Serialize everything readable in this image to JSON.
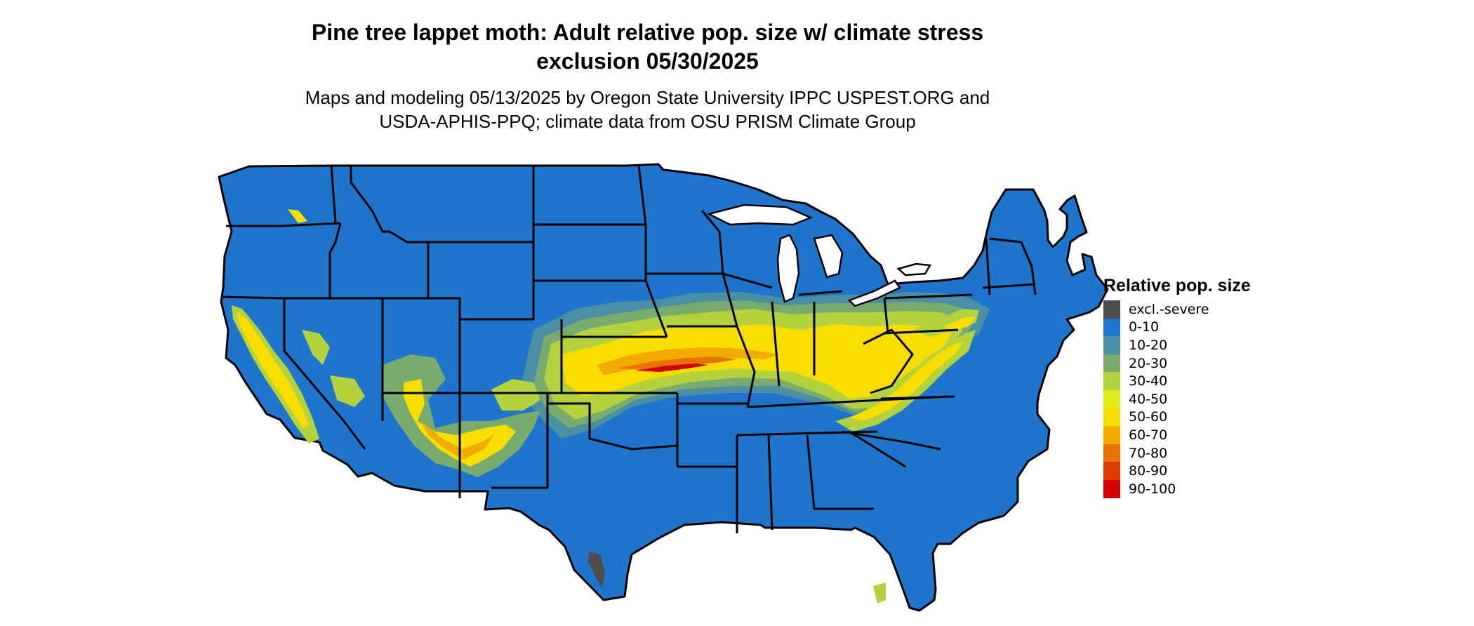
{
  "title": {
    "line1": "Pine tree lappet moth: Adult relative pop. size w/ climate stress",
    "line2": "exclusion 05/30/2025"
  },
  "subtitle": {
    "line1": "Maps and modeling 05/13/2025 by Oregon State University IPPC USPEST.ORG and",
    "line2": "USDA-APHIS-PPQ; climate data from OSU PRISM Climate Group"
  },
  "legend": {
    "title": "Relative pop. size",
    "items": [
      {
        "label": "excl.-severe",
        "color": "#4d4d4d"
      },
      {
        "label": "0-10",
        "color": "#1f75cc"
      },
      {
        "label": "10-20",
        "color": "#4a8fa4"
      },
      {
        "label": "20-30",
        "color": "#7aab6e"
      },
      {
        "label": "30-40",
        "color": "#b4d23e"
      },
      {
        "label": "40-50",
        "color": "#e1ec1a"
      },
      {
        "label": "50-60",
        "color": "#f8dd00"
      },
      {
        "label": "60-70",
        "color": "#f0aa00"
      },
      {
        "label": "70-80",
        "color": "#e67300"
      },
      {
        "label": "80-90",
        "color": "#dc3c00"
      },
      {
        "label": "90-100",
        "color": "#d40000"
      }
    ]
  },
  "map": {
    "region": "Contiguous United States",
    "base_color": "#1f75cc",
    "border_color": "#000000"
  }
}
